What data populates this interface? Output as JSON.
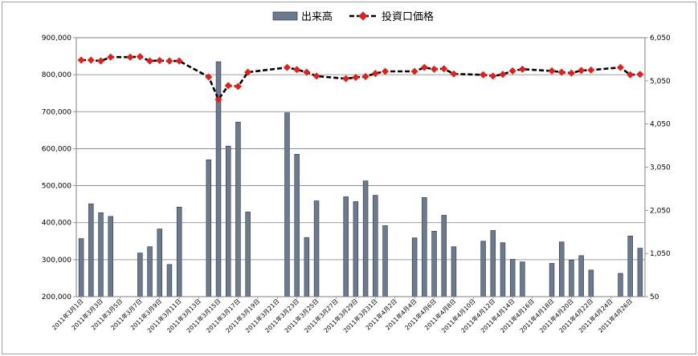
{
  "chart_data": {
    "type": "bar",
    "legend": {
      "bar_series_name": "出来高",
      "line_series_name": "投資口価格",
      "placement": "top-center"
    },
    "bar_color": "#6b7a8f",
    "line_color": "#000000",
    "marker_color": "#e0201b",
    "y_left": {
      "min": 200000,
      "max": 900000,
      "ticks": [
        "200,000",
        "300,000",
        "400,000",
        "500,000",
        "600,000",
        "700,000",
        "800,000",
        "900,000"
      ]
    },
    "y_right": {
      "min": 50,
      "max": 6050,
      "ticks": [
        "50",
        "1,050",
        "2,050",
        "3,050",
        "4,050",
        "5,050",
        "6,050"
      ]
    },
    "grid": true,
    "x_labels": [
      "2011年3月1日",
      "2011年3月3日",
      "2011年3月5日",
      "2011年3月7日",
      "2011年3月9日",
      "2011年3月11日",
      "2011年3月13日",
      "2011年3月15日",
      "2011年3月17日",
      "2011年3月19日",
      "2011年3月21日",
      "2011年3月23日",
      "2011年3月25日",
      "2011年3月27日",
      "2011年3月29日",
      "2011年3月31日",
      "2011年4月2日",
      "2011年4月4日",
      "2011年4月6日",
      "2011年4月8日",
      "2011年4月10日",
      "2011年4月12日",
      "2011年4月14日",
      "2011年4月16日",
      "2011年4月18日",
      "2011年4月20日",
      "2011年4月22日",
      "2011年4月24日",
      "2011年4月26日"
    ],
    "volume": [
      357000,
      451000,
      427000,
      417000,
      null,
      null,
      318000,
      335000,
      383000,
      287000,
      442000,
      null,
      null,
      570000,
      835000,
      607000,
      672000,
      429000,
      null,
      null,
      null,
      697000,
      585000,
      360000,
      459000,
      null,
      null,
      470000,
      457000,
      513000,
      474000,
      392000,
      null,
      null,
      359000,
      468000,
      377000,
      420000,
      335000,
      null,
      null,
      350000,
      379000,
      346000,
      301000,
      294000,
      null,
      null,
      290000,
      348000,
      299000,
      311000,
      272000,
      null,
      null,
      263000,
      364000,
      331000
    ],
    "price": [
      5530,
      5530,
      5510,
      5600,
      null,
      5600,
      5610,
      5510,
      5520,
      5510,
      5510,
      null,
      null,
      5140,
      4620,
      4940,
      4920,
      5250,
      null,
      null,
      null,
      5360,
      5310,
      5250,
      5160,
      null,
      null,
      5100,
      5130,
      5150,
      5220,
      5270,
      null,
      null,
      5270,
      5360,
      5320,
      5330,
      5210,
      null,
      null,
      5190,
      5160,
      5200,
      5280,
      5320,
      null,
      null,
      5280,
      5250,
      5230,
      5290,
      5300,
      null,
      null,
      5360,
      5190,
      5200
    ]
  }
}
